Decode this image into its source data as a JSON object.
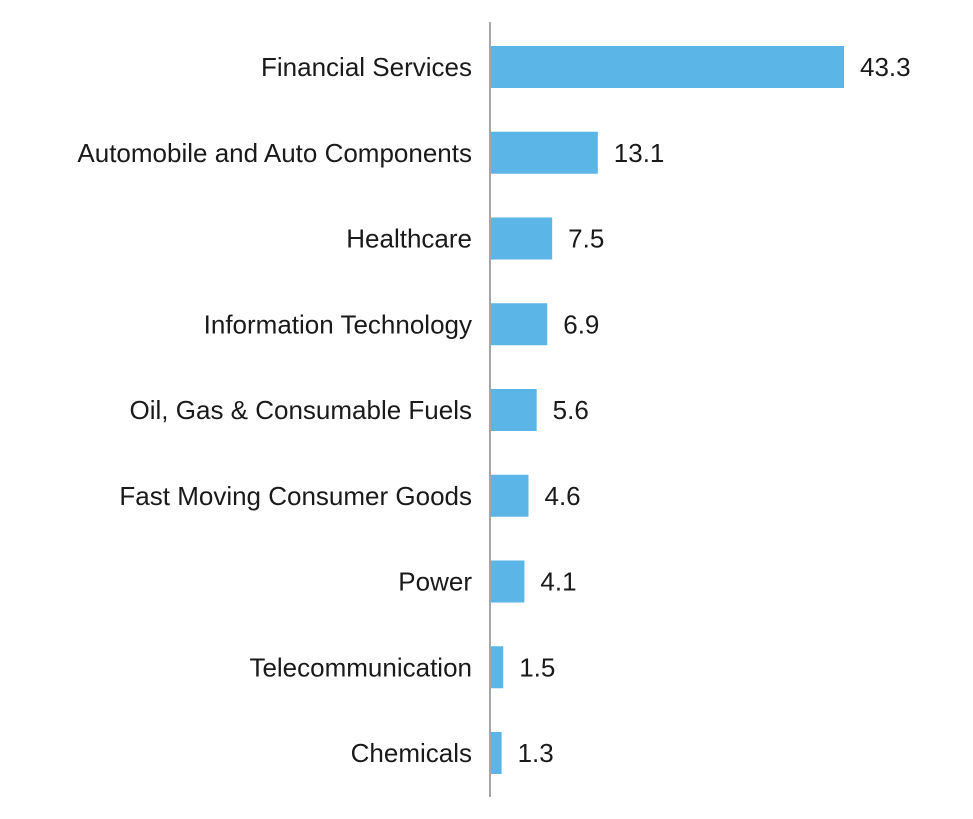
{
  "chart_data": {
    "type": "bar",
    "orientation": "horizontal",
    "categories": [
      "Financial Services",
      "Automobile and Auto Components",
      "Healthcare",
      "Information Technology",
      "Oil, Gas & Consumable Fuels",
      "Fast Moving Consumer Goods",
      "Power",
      "Telecommunication",
      "Chemicals"
    ],
    "values": [
      43.3,
      13.1,
      7.5,
      6.9,
      5.6,
      4.6,
      4.1,
      1.5,
      1.3
    ],
    "value_labels": [
      "43.3",
      "13.1",
      "7.5",
      "6.9",
      "5.6",
      "4.6",
      "4.1",
      "1.5",
      "1.3"
    ],
    "title": "",
    "xlabel": "",
    "ylabel": "",
    "xlim": [
      0,
      50
    ],
    "grid": false,
    "legend": "none",
    "bar_color": "#5bb5e6",
    "axis_color": "#a6a6a6",
    "text_color": "#1a1a1a"
  }
}
